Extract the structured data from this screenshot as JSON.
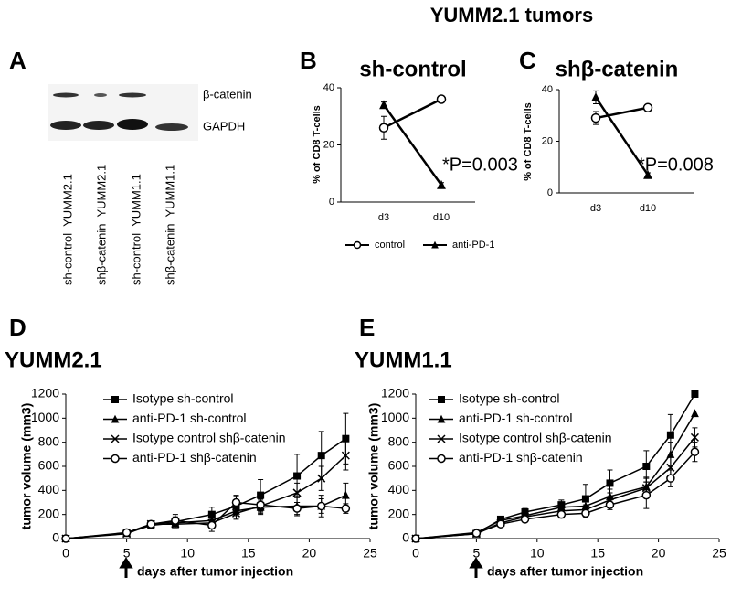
{
  "figure": {
    "title": "YUMM2.1 tumors",
    "panel_labels": [
      "A",
      "B",
      "C",
      "D",
      "E"
    ]
  },
  "blot": {
    "bands": [
      "β-catenin",
      "GAPDH"
    ],
    "lanes": [
      "sh-control  YUMM2.1",
      "shβ-catenin  YUMM2.1",
      "sh-control  YUMM1.1",
      "shβ-catenin  YUMM1.1"
    ]
  },
  "chart_data": [
    {
      "type": "line",
      "title": "sh-control",
      "y_label": "% of CD8 T-cells",
      "categories": [
        "d3",
        "d10"
      ],
      "ylim": [
        0,
        40
      ],
      "yticks": [
        0,
        20,
        40
      ],
      "annotation": "*P=0.003",
      "series": [
        {
          "name": "control",
          "color": "#000000",
          "marker": "circle-open",
          "values": [
            26,
            36
          ],
          "errors": [
            4,
            0.6
          ]
        },
        {
          "name": "anti-PD-1",
          "color": "#000000",
          "marker": "triangle",
          "values": [
            34,
            6
          ],
          "errors": [
            1,
            0.8
          ]
        }
      ]
    },
    {
      "type": "line",
      "title": "shβ-catenin",
      "y_label": "% of CD8 T-cells",
      "categories": [
        "d3",
        "d10"
      ],
      "ylim": [
        0,
        40
      ],
      "yticks": [
        0,
        20,
        40
      ],
      "annotation": "*P=0.008",
      "series": [
        {
          "color": "#000000",
          "marker": "circle-open",
          "values": [
            29,
            33
          ],
          "errors": [
            2.5,
            1
          ]
        },
        {
          "color": "#000000",
          "marker": "triangle",
          "values": [
            37,
            7
          ],
          "errors": [
            2.5,
            0.8
          ]
        }
      ]
    },
    {
      "type": "line",
      "title": "YUMM2.1",
      "x_label": "days after tumor injection",
      "y_label": "tumor volume (mm3)",
      "x": [
        0,
        5,
        7,
        9,
        12,
        14,
        16,
        19,
        21,
        23
      ],
      "xlim": [
        0,
        25
      ],
      "xticks": [
        0,
        5,
        10,
        15,
        20,
        25
      ],
      "ylim": [
        0,
        1200
      ],
      "yticks": [
        0,
        200,
        400,
        600,
        800,
        1000,
        1200
      ],
      "series": [
        {
          "name": "Isotype sh-control",
          "color": "#000000",
          "marker": "square",
          "values": [
            0,
            45,
            120,
            140,
            200,
            270,
            360,
            520,
            690,
            830
          ],
          "errors": [
            0,
            10,
            20,
            40,
            60,
            80,
            130,
            180,
            200,
            210
          ]
        },
        {
          "name": "anti-PD-1 sh-control",
          "color": "#000000",
          "marker": "triangle",
          "values": [
            0,
            45,
            110,
            130,
            150,
            230,
            260,
            270,
            270,
            360
          ],
          "errors": [
            0,
            10,
            20,
            30,
            40,
            60,
            60,
            80,
            90,
            100
          ]
        },
        {
          "name": "Isotype control shβ-catenin",
          "color": "#000000",
          "marker": "x",
          "values": [
            0,
            40,
            120,
            120,
            130,
            210,
            270,
            380,
            500,
            690
          ],
          "errors": [
            0,
            10,
            20,
            30,
            40,
            50,
            60,
            80,
            100,
            120
          ]
        },
        {
          "name": "anti-PD-1 shβ-catenin",
          "color": "#000000",
          "marker": "circle-open",
          "values": [
            0,
            50,
            120,
            150,
            110,
            300,
            280,
            250,
            270,
            250
          ],
          "errors": [
            0,
            10,
            20,
            50,
            50,
            60,
            60,
            50,
            60,
            40
          ]
        }
      ]
    },
    {
      "type": "line",
      "title": "YUMM1.1",
      "x_label": "days after tumor injection",
      "y_label": "tumor volume (mm3)",
      "x": [
        0,
        5,
        7,
        9,
        12,
        14,
        16,
        19,
        21,
        23
      ],
      "xlim": [
        0,
        25
      ],
      "xticks": [
        0,
        5,
        10,
        15,
        20,
        25
      ],
      "ylim": [
        0,
        1200
      ],
      "yticks": [
        0,
        200,
        400,
        600,
        800,
        1000,
        1200
      ],
      "series": [
        {
          "name": "Isotype sh-control",
          "color": "#000000",
          "marker": "square",
          "values": [
            0,
            40,
            160,
            220,
            280,
            330,
            460,
            600,
            860,
            1200
          ],
          "errors": [
            0,
            10,
            20,
            30,
            40,
            120,
            110,
            130,
            170,
            0
          ]
        },
        {
          "name": "anti-PD-1 sh-control",
          "color": "#000000",
          "marker": "triangle",
          "values": [
            0,
            50,
            150,
            190,
            260,
            270,
            350,
            430,
            700,
            1040
          ],
          "errors": [
            0,
            10,
            20,
            30,
            40,
            50,
            60,
            80,
            100,
            0
          ]
        },
        {
          "name": "Isotype control shβ-catenin",
          "color": "#000000",
          "marker": "x",
          "values": [
            0,
            40,
            130,
            180,
            230,
            240,
            320,
            420,
            590,
            840
          ],
          "errors": [
            0,
            10,
            20,
            30,
            30,
            40,
            60,
            80,
            90,
            80
          ]
        },
        {
          "name": "anti-PD-1 shβ-catenin",
          "color": "#000000",
          "marker": "circle-open",
          "values": [
            0,
            45,
            120,
            160,
            200,
            210,
            280,
            360,
            500,
            720
          ],
          "errors": [
            0,
            10,
            20,
            20,
            30,
            30,
            40,
            110,
            70,
            80
          ]
        }
      ]
    }
  ]
}
